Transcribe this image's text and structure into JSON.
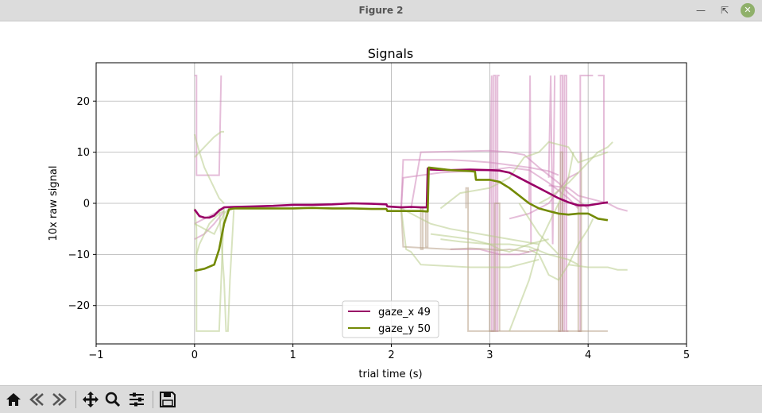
{
  "window": {
    "title": "Figure 2",
    "controls": [
      "minimize-icon",
      "maximize-icon",
      "close-icon"
    ]
  },
  "toolbar": {
    "buttons": [
      "home-icon",
      "back-icon",
      "forward-icon",
      "pan-icon",
      "zoom-icon",
      "configure-subplots-icon",
      "save-icon"
    ]
  },
  "chart_data": {
    "type": "line",
    "title": "Signals",
    "xlabel": "trial time (s)",
    "ylabel": "10x raw signal",
    "xlim": [
      -1,
      5
    ],
    "ylim": [
      -27.5,
      27.5
    ],
    "xticks": [
      -1,
      0,
      1,
      2,
      3,
      4,
      5
    ],
    "yticks": [
      -20,
      -10,
      0,
      10,
      20
    ],
    "grid": true,
    "legend_position": "lower-center",
    "colors": {
      "gaze_x": "#990066",
      "gaze_y": "#738a05"
    },
    "series": [
      {
        "name": "gaze_x 49",
        "color": "#990066",
        "x": [
          0.0,
          0.05,
          0.1,
          0.15,
          0.2,
          0.25,
          0.3,
          0.4,
          0.6,
          0.8,
          1.0,
          1.2,
          1.4,
          1.6,
          1.8,
          1.95,
          1.96,
          2.1,
          2.2,
          2.3,
          2.36,
          2.37,
          2.4,
          2.6,
          2.8,
          3.0,
          3.1,
          3.2,
          3.3,
          3.4,
          3.5,
          3.6,
          3.7,
          3.8,
          3.9,
          4.0,
          4.1,
          4.2
        ],
        "y": [
          -1.2,
          -2.5,
          -2.8,
          -2.8,
          -2.4,
          -1.4,
          -0.8,
          -0.7,
          -0.6,
          -0.5,
          -0.3,
          -0.3,
          -0.2,
          0.0,
          -0.1,
          -0.2,
          -0.6,
          -0.8,
          -0.7,
          -0.8,
          -0.8,
          6.8,
          6.6,
          6.5,
          6.6,
          6.5,
          6.4,
          6.0,
          5.0,
          4.0,
          3.0,
          2.0,
          1.0,
          0.2,
          -0.4,
          -0.4,
          -0.1,
          0.2
        ]
      },
      {
        "name": "gaze_y 50",
        "color": "#738a05",
        "x": [
          0.0,
          0.1,
          0.2,
          0.25,
          0.3,
          0.35,
          0.4,
          0.6,
          0.8,
          1.0,
          1.2,
          1.4,
          1.6,
          1.8,
          1.95,
          1.96,
          2.1,
          2.3,
          2.37,
          2.38,
          2.6,
          2.8,
          2.85,
          2.86,
          3.0,
          3.1,
          3.2,
          3.3,
          3.4,
          3.5,
          3.6,
          3.7,
          3.8,
          3.9,
          4.0,
          4.1,
          4.2
        ],
        "y": [
          -13.2,
          -12.8,
          -12.0,
          -9.0,
          -4.0,
          -1.2,
          -1.0,
          -1.0,
          -1.0,
          -1.0,
          -0.9,
          -1.0,
          -1.0,
          -1.1,
          -1.1,
          -1.5,
          -1.5,
          -1.5,
          -1.6,
          7.0,
          6.5,
          6.3,
          6.2,
          4.6,
          4.6,
          4.2,
          3.0,
          1.5,
          0.0,
          -1.0,
          -1.5,
          -2.0,
          -2.2,
          -2.0,
          -2.0,
          -3.0,
          -3.3
        ]
      }
    ],
    "background_traces": [
      {
        "color": "#cf86ba",
        "x": [
          0.0,
          0.02,
          0.02,
          0.25,
          0.27,
          0.27
        ],
        "y": [
          25,
          25,
          5.5,
          5.5,
          25,
          25
        ]
      },
      {
        "color": "#cf86ba",
        "x": [
          0.0,
          0.05,
          0.2,
          0.3
        ],
        "y": [
          -4,
          -3.5,
          -2,
          -1
        ]
      },
      {
        "color": "#cf86ba",
        "x": [
          0.0,
          0.1,
          0.2,
          0.3
        ],
        "y": [
          -7,
          -6,
          -4,
          -1.5
        ]
      },
      {
        "color": "#cf86ba",
        "x": [
          2.1,
          2.12,
          2.6,
          2.8,
          3.0,
          3.2,
          3.4,
          3.6,
          3.7
        ],
        "y": [
          -1,
          8.5,
          8.5,
          8.3,
          8.0,
          7.5,
          7.0,
          6.3,
          5.5
        ]
      },
      {
        "color": "#cf86ba",
        "x": [
          2.2,
          2.3,
          3.0,
          3.2,
          3.35,
          3.5,
          3.7,
          3.8,
          3.9,
          4.0
        ],
        "y": [
          -1,
          10,
          10.3,
          10,
          9.5,
          7,
          4,
          2,
          0.5,
          -1
        ]
      },
      {
        "color": "#cf86ba",
        "x": [
          2.1,
          2.12,
          2.5,
          3.0,
          3.2,
          3.4,
          3.6,
          3.8,
          3.9
        ],
        "y": [
          -1,
          5,
          6,
          6.5,
          7,
          6.5,
          4,
          1,
          -1
        ]
      },
      {
        "color": "#cf86ba",
        "x": [
          3.6,
          3.8,
          3.9,
          4.2,
          4.3,
          4.4
        ],
        "y": [
          3.5,
          3,
          1.5,
          0,
          -1,
          -1.5
        ]
      },
      {
        "color": "#cf86ba",
        "x": [
          3.2,
          3.4,
          3.6,
          3.8,
          3.9
        ],
        "y": [
          -3,
          -2,
          0,
          5,
          6
        ]
      },
      {
        "color": "#cf86ba",
        "x": [
          2.6,
          2.9,
          3.1,
          3.3,
          3.5
        ],
        "y": [
          -9,
          -9,
          -10,
          -10,
          -9
        ]
      },
      {
        "color": "#cf86ba",
        "x": [
          3.0,
          3.02,
          3.02,
          3.04,
          3.04,
          3.06,
          3.06,
          3.08,
          3.08,
          3.1
        ],
        "y": [
          0,
          25,
          -25,
          -25,
          25,
          25,
          -25,
          -25,
          25,
          25
        ]
      },
      {
        "color": "#cf86ba",
        "x": [
          3.4,
          3.41,
          3.41,
          3.42
        ],
        "y": [
          0,
          25,
          25,
          -8
        ]
      },
      {
        "color": "#cf86ba",
        "x": [
          3.6,
          3.62,
          3.62,
          3.64,
          3.64,
          3.66
        ],
        "y": [
          5,
          25,
          25,
          -8,
          -8,
          25
        ]
      },
      {
        "color": "#cf86ba",
        "x": [
          3.7,
          3.72,
          3.72,
          3.74,
          3.74,
          3.76,
          3.76,
          3.78,
          3.78,
          3.8
        ],
        "y": [
          -25,
          -25,
          25,
          25,
          -25,
          -25,
          25,
          25,
          -25,
          -25
        ]
      },
      {
        "color": "#cf86ba",
        "x": [
          3.9,
          3.92,
          3.92,
          3.94,
          3.94,
          4.05
        ],
        "y": [
          -25,
          -25,
          25,
          25,
          25,
          25
        ]
      },
      {
        "color": "#cf86ba",
        "x": [
          4.1,
          4.16,
          4.16,
          4.2
        ],
        "y": [
          25,
          25,
          0,
          0
        ]
      },
      {
        "color": "#b8a088",
        "x": [
          2.35,
          2.35,
          2.37,
          2.37
        ],
        "y": [
          -1.5,
          -8.5,
          -8.5,
          7
        ]
      },
      {
        "color": "#b8a088",
        "x": [
          2.1,
          2.12,
          2.12,
          2.4,
          2.6,
          2.8,
          3.0,
          3.1,
          3.2,
          3.4
        ],
        "y": [
          -1,
          -8.5,
          -8.5,
          -8.8,
          -9.0,
          -8.8,
          -9.0,
          -9.2,
          -9.0,
          -9.5
        ]
      },
      {
        "color": "#b8a088",
        "x": [
          2.3,
          2.3,
          2.32,
          2.32
        ],
        "y": [
          -1,
          -9,
          -9,
          -1
        ]
      },
      {
        "color": "#b8a088",
        "x": [
          3.0,
          3.0,
          3.05,
          3.05,
          3.1,
          3.1
        ],
        "y": [
          0,
          -25,
          -25,
          0,
          0,
          -25
        ]
      },
      {
        "color": "#b8a088",
        "x": [
          2.76,
          2.76,
          2.78,
          2.78,
          3.4,
          3.42,
          3.42,
          3.9,
          3.95,
          4.2
        ],
        "y": [
          -1,
          3,
          3,
          -25,
          -25,
          -25,
          -25,
          -25,
          -25,
          -25
        ]
      },
      {
        "color": "#b8a088",
        "x": [
          3.7,
          3.7,
          3.72,
          3.72,
          3.74,
          3.74
        ],
        "y": [
          0,
          -25,
          -25,
          10,
          10,
          -25
        ]
      },
      {
        "color": "#b8a088",
        "x": [
          3.9,
          3.9,
          3.93,
          3.93
        ],
        "y": [
          0,
          -25,
          -25,
          10
        ]
      },
      {
        "color": "#b8cc8a",
        "x": [
          0.0,
          0.05,
          0.1,
          0.2,
          0.27,
          0.3
        ],
        "y": [
          9,
          10,
          11,
          13,
          14,
          14
        ]
      },
      {
        "color": "#b8cc8a",
        "x": [
          0.0,
          0.05,
          0.1,
          0.15,
          0.2,
          0.25,
          0.3
        ],
        "y": [
          13.5,
          10,
          7,
          5,
          3,
          1,
          0
        ]
      },
      {
        "color": "#b8cc8a",
        "x": [
          0.0,
          0.02,
          0.02,
          0.05,
          0.1,
          0.15,
          0.2,
          0.25,
          0.3
        ],
        "y": [
          -1,
          -5,
          -25,
          -25,
          -25,
          -25,
          -25,
          -25,
          -1
        ]
      },
      {
        "color": "#b8cc8a",
        "x": [
          0.02,
          0.05,
          0.1,
          0.15,
          0.2,
          0.25,
          0.3
        ],
        "y": [
          -10,
          -8,
          -6,
          -4,
          -3,
          -2,
          -1.5
        ]
      },
      {
        "color": "#b8cc8a",
        "x": [
          0.0,
          0.1,
          0.2,
          0.3,
          0.35
        ],
        "y": [
          -4,
          -5,
          -6,
          -2,
          -1
        ]
      },
      {
        "color": "#b8cc8a",
        "x": [
          0.25,
          0.3,
          0.32,
          0.34,
          0.36,
          0.4
        ],
        "y": [
          -1,
          -15,
          -25,
          -25,
          -15,
          -1
        ]
      },
      {
        "color": "#b8cc8a",
        "x": [
          2.1,
          2.15,
          2.2,
          2.3,
          2.8,
          3.0,
          3.2,
          3.3,
          3.5
        ],
        "y": [
          -1,
          -9,
          -9.5,
          -12,
          -12.5,
          -12.5,
          -12.5,
          -12,
          -11
        ]
      },
      {
        "color": "#b8cc8a",
        "x": [
          2.5,
          2.7,
          3.0,
          3.2,
          3.4,
          3.6,
          3.8,
          3.9
        ],
        "y": [
          -7,
          -7.5,
          -8,
          -8,
          -8.5,
          -10,
          -11,
          -12
        ]
      },
      {
        "color": "#b8cc8a",
        "x": [
          2.4,
          2.6,
          2.8,
          3.0,
          3.1,
          3.2,
          3.4,
          3.6
        ],
        "y": [
          -6,
          -6.5,
          -7,
          -8,
          -9,
          -9.5,
          -8,
          -7
        ]
      },
      {
        "color": "#b8cc8a",
        "x": [
          3.8,
          4.0,
          4.2,
          4.3,
          4.4
        ],
        "y": [
          -12,
          -12.5,
          -12.5,
          -13,
          -13
        ]
      },
      {
        "color": "#b8cc8a",
        "x": [
          3.4,
          3.5,
          3.6,
          3.7,
          3.8,
          3.9,
          4.0,
          4.05
        ],
        "y": [
          -9,
          -10,
          -14,
          -15,
          -12,
          -8,
          -5,
          -3
        ]
      },
      {
        "color": "#b8cc8a",
        "x": [
          3.2,
          3.3,
          3.4,
          3.5,
          3.6,
          3.7,
          3.8,
          3.85
        ],
        "y": [
          -25,
          -20,
          -15,
          -8,
          -4,
          0,
          5,
          10
        ]
      },
      {
        "color": "#b8cc8a",
        "x": [
          3.5,
          3.6,
          3.7,
          3.8,
          3.9,
          4.0,
          4.1,
          4.2,
          4.25
        ],
        "y": [
          0,
          1,
          2.5,
          4,
          6,
          8,
          10,
          11,
          12
        ]
      },
      {
        "color": "#b8cc8a",
        "x": [
          2.5,
          2.7,
          3.0,
          3.2,
          3.35,
          3.5,
          3.6,
          3.8,
          3.9,
          4.2
        ],
        "y": [
          -1,
          2,
          3,
          5,
          9,
          10,
          12,
          11,
          8,
          10
        ]
      },
      {
        "color": "#b8cc8a",
        "x": [
          3.3,
          3.4,
          3.5,
          3.6,
          3.7
        ],
        "y": [
          0,
          -3,
          -6,
          -8,
          -10
        ]
      },
      {
        "color": "#b8cc8a",
        "x": [
          2.1,
          2.4,
          2.6,
          2.9,
          3.2,
          3.5
        ],
        "y": [
          -1,
          -4,
          -5,
          -6,
          -7,
          -8
        ]
      }
    ]
  }
}
